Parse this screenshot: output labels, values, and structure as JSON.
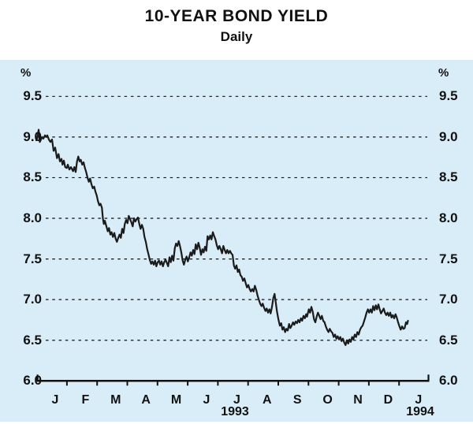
{
  "header": {
    "title": "10-YEAR BOND YIELD",
    "subtitle": "Daily"
  },
  "axis": {
    "unit_left": "%",
    "unit_right": "%",
    "year_left": "1993",
    "year_right": "1994"
  },
  "chart_data": {
    "type": "line",
    "title": "10-YEAR BOND YIELD",
    "subtitle": "Daily",
    "ylabel": "%",
    "ylim": [
      6.0,
      9.5
    ],
    "yticks": [
      9.5,
      9.0,
      8.5,
      8.0,
      7.5,
      7.0,
      6.5,
      6.0
    ],
    "ytick_labels": [
      "9.5",
      "9.0",
      "8.5",
      "8.0",
      "7.5",
      "7.0",
      "6.5",
      "6.0"
    ],
    "x_months": [
      "J",
      "F",
      "M",
      "A",
      "M",
      "J",
      "J",
      "A",
      "S",
      "O",
      "N",
      "D",
      "J"
    ],
    "x_years": [
      "1993",
      "1994"
    ],
    "grid": "horizontal dashed lines at each 0.5 from 6.5 to 9.5; solid x-axis at 6.0 with month ticks",
    "legend_position": "none",
    "colors": {
      "background": "#d9edf8",
      "line": "#1b1b1b",
      "text": "#111111"
    },
    "series": [
      {
        "name": "10-year bond yield, daily, per cent",
        "points": [
          [
            46,
            8.96
          ],
          [
            47.5,
            8.99
          ],
          [
            49,
            9.09
          ],
          [
            50.5,
            8.94
          ],
          [
            52,
            8.97
          ],
          [
            53.5,
            9.0
          ],
          [
            55,
            8.98
          ],
          [
            57,
            9.02
          ],
          [
            58.5,
            9.0
          ],
          [
            60,
            9.02
          ],
          [
            62,
            8.97
          ],
          [
            64,
            8.94
          ],
          [
            66,
            8.97
          ],
          [
            68,
            8.83
          ],
          [
            70,
            8.87
          ],
          [
            72.3,
            8.74
          ],
          [
            74.3,
            8.79
          ],
          [
            76,
            8.7
          ],
          [
            78,
            8.73
          ],
          [
            79.3,
            8.66
          ],
          [
            81,
            8.71
          ],
          [
            82.7,
            8.63
          ],
          [
            84.7,
            8.62
          ],
          [
            86,
            8.66
          ],
          [
            88,
            8.6
          ],
          [
            90,
            8.63
          ],
          [
            92.7,
            8.58
          ],
          [
            94.3,
            8.63
          ],
          [
            96,
            8.57
          ],
          [
            97.7,
            8.7
          ],
          [
            99.3,
            8.76
          ],
          [
            101,
            8.7
          ],
          [
            102.5,
            8.72
          ],
          [
            104.3,
            8.66
          ],
          [
            106,
            8.69
          ],
          [
            107.7,
            8.62
          ],
          [
            109.3,
            8.57
          ],
          [
            111,
            8.5
          ],
          [
            112.7,
            8.45
          ],
          [
            114.3,
            8.49
          ],
          [
            116,
            8.42
          ],
          [
            117.7,
            8.37
          ],
          [
            119.5,
            8.39
          ],
          [
            121,
            8.33
          ],
          [
            122.7,
            8.28
          ],
          [
            124.3,
            8.21
          ],
          [
            126,
            8.16
          ],
          [
            127.5,
            8.18
          ],
          [
            129.3,
            8.13
          ],
          [
            130.5,
            8.0
          ],
          [
            131.7,
            7.93
          ],
          [
            133,
            7.97
          ],
          [
            135,
            7.9
          ],
          [
            136.7,
            7.84
          ],
          [
            138.3,
            7.88
          ],
          [
            140,
            7.8
          ],
          [
            141.5,
            7.83
          ],
          [
            143.3,
            7.77
          ],
          [
            145,
            7.82
          ],
          [
            146.7,
            7.75
          ],
          [
            148.3,
            7.71
          ],
          [
            150,
            7.76
          ],
          [
            151.7,
            7.8
          ],
          [
            153.3,
            7.76
          ],
          [
            155,
            7.87
          ],
          [
            156.7,
            7.82
          ],
          [
            158.3,
            7.93
          ],
          [
            160,
            7.98
          ],
          [
            161.7,
            7.94
          ],
          [
            163.3,
            8.03
          ],
          [
            165,
            7.99
          ],
          [
            166.7,
            7.95
          ],
          [
            168.3,
            7.9
          ],
          [
            170,
            8.0
          ],
          [
            171.7,
            7.96
          ],
          [
            173.3,
            7.99
          ],
          [
            175,
            8.01
          ],
          [
            176.7,
            7.93
          ],
          [
            178.3,
            7.87
          ],
          [
            180,
            7.92
          ],
          [
            181.7,
            7.87
          ],
          [
            183.3,
            7.77
          ],
          [
            185,
            7.71
          ],
          [
            186.7,
            7.62
          ],
          [
            188.3,
            7.56
          ],
          [
            190,
            7.49
          ],
          [
            191.7,
            7.44
          ],
          [
            193.3,
            7.47
          ],
          [
            195,
            7.43
          ],
          [
            196.7,
            7.48
          ],
          [
            198.3,
            7.41
          ],
          [
            200,
            7.46
          ],
          [
            201.7,
            7.48
          ],
          [
            203.3,
            7.43
          ],
          [
            205,
            7.47
          ],
          [
            206.7,
            7.41
          ],
          [
            208.3,
            7.46
          ],
          [
            210,
            7.49
          ],
          [
            211.7,
            7.45
          ],
          [
            213.3,
            7.41
          ],
          [
            215,
            7.52
          ],
          [
            216.7,
            7.46
          ],
          [
            218.3,
            7.54
          ],
          [
            220,
            7.48
          ],
          [
            221.7,
            7.63
          ],
          [
            223.3,
            7.69
          ],
          [
            225,
            7.66
          ],
          [
            226.7,
            7.72
          ],
          [
            228.3,
            7.66
          ],
          [
            230,
            7.58
          ],
          [
            231.7,
            7.48
          ],
          [
            233.3,
            7.43
          ],
          [
            235,
            7.49
          ],
          [
            236.7,
            7.53
          ],
          [
            238.3,
            7.47
          ],
          [
            240,
            7.52
          ],
          [
            241.7,
            7.58
          ],
          [
            243.3,
            7.54
          ],
          [
            245,
            7.61
          ],
          [
            246.7,
            7.56
          ],
          [
            248.3,
            7.68
          ],
          [
            250,
            7.62
          ],
          [
            251.7,
            7.7
          ],
          [
            253.3,
            7.64
          ],
          [
            255,
            7.55
          ],
          [
            256.7,
            7.62
          ],
          [
            258.3,
            7.58
          ],
          [
            260,
            7.65
          ],
          [
            261.7,
            7.6
          ],
          [
            263.3,
            7.78
          ],
          [
            265,
            7.74
          ],
          [
            266.7,
            7.79
          ],
          [
            268.3,
            7.74
          ],
          [
            270,
            7.83
          ],
          [
            271.7,
            7.78
          ],
          [
            273.3,
            7.74
          ],
          [
            275,
            7.67
          ],
          [
            276.7,
            7.62
          ],
          [
            278.3,
            7.66
          ],
          [
            280,
            7.62
          ],
          [
            281.7,
            7.57
          ],
          [
            283.3,
            7.66
          ],
          [
            285,
            7.61
          ],
          [
            286.7,
            7.57
          ],
          [
            288.3,
            7.61
          ],
          [
            290,
            7.57
          ],
          [
            291.7,
            7.6
          ],
          [
            293.3,
            7.57
          ],
          [
            295,
            7.55
          ],
          [
            296.7,
            7.42
          ],
          [
            298.3,
            7.38
          ],
          [
            300,
            7.42
          ],
          [
            301.7,
            7.34
          ],
          [
            303.3,
            7.37
          ],
          [
            305,
            7.3
          ],
          [
            306.7,
            7.28
          ],
          [
            308.3,
            7.23
          ],
          [
            310,
            7.26
          ],
          [
            311.7,
            7.2
          ],
          [
            313.3,
            7.15
          ],
          [
            315,
            7.18
          ],
          [
            316.7,
            7.13
          ],
          [
            318.3,
            7.1
          ],
          [
            320,
            7.13
          ],
          [
            321.7,
            7.1
          ],
          [
            323.3,
            7.17
          ],
          [
            325,
            7.12
          ],
          [
            326.7,
            7.05
          ],
          [
            328.3,
            7.0
          ],
          [
            330,
            6.95
          ],
          [
            331.7,
            6.92
          ],
          [
            333.3,
            6.95
          ],
          [
            335,
            6.9
          ],
          [
            336.7,
            6.86
          ],
          [
            338.3,
            6.89
          ],
          [
            340,
            6.84
          ],
          [
            341.7,
            6.88
          ],
          [
            343.3,
            6.83
          ],
          [
            345,
            6.91
          ],
          [
            346.7,
            7.02
          ],
          [
            348.3,
            7.07
          ],
          [
            350,
            6.95
          ],
          [
            351.4,
            6.85
          ],
          [
            353.3,
            6.75
          ],
          [
            355,
            6.68
          ],
          [
            356.7,
            6.71
          ],
          [
            358.3,
            6.63
          ],
          [
            360,
            6.66
          ],
          [
            361.7,
            6.6
          ],
          [
            363.3,
            6.64
          ],
          [
            365,
            6.62
          ],
          [
            366.7,
            6.7
          ],
          [
            368.3,
            6.65
          ],
          [
            370,
            6.68
          ],
          [
            371.7,
            6.72
          ],
          [
            373.3,
            6.69
          ],
          [
            375,
            6.73
          ],
          [
            376.7,
            6.71
          ],
          [
            378.3,
            6.75
          ],
          [
            380,
            6.72
          ],
          [
            381.7,
            6.77
          ],
          [
            383.3,
            6.74
          ],
          [
            385,
            6.8
          ],
          [
            386.7,
            6.77
          ],
          [
            388.3,
            6.82
          ],
          [
            389.5,
            6.79
          ],
          [
            391.7,
            6.88
          ],
          [
            393.3,
            6.84
          ],
          [
            395,
            6.91
          ],
          [
            396.7,
            6.85
          ],
          [
            398.3,
            6.76
          ],
          [
            400,
            6.72
          ],
          [
            401.7,
            6.79
          ],
          [
            403.3,
            6.84
          ],
          [
            405,
            6.8
          ],
          [
            406.7,
            6.76
          ],
          [
            408.3,
            6.8
          ],
          [
            410,
            6.74
          ],
          [
            411.7,
            6.72
          ],
          [
            413.3,
            6.67
          ],
          [
            415,
            6.63
          ],
          [
            416.7,
            6.6
          ],
          [
            418.3,
            6.64
          ],
          [
            420,
            6.61
          ],
          [
            421.7,
            6.59
          ],
          [
            423.3,
            6.54
          ],
          [
            425,
            6.57
          ],
          [
            426.7,
            6.52
          ],
          [
            428.3,
            6.55
          ],
          [
            430,
            6.51
          ],
          [
            431.7,
            6.54
          ],
          [
            433.3,
            6.49
          ],
          [
            435,
            6.52
          ],
          [
            436.7,
            6.47
          ],
          [
            438.3,
            6.44
          ],
          [
            440,
            6.5
          ],
          [
            441.7,
            6.46
          ],
          [
            443.3,
            6.51
          ],
          [
            445,
            6.48
          ],
          [
            446.7,
            6.54
          ],
          [
            448.3,
            6.51
          ],
          [
            450,
            6.57
          ],
          [
            451.7,
            6.54
          ],
          [
            453.3,
            6.6
          ],
          [
            455,
            6.57
          ],
          [
            456.7,
            6.63
          ],
          [
            458.3,
            6.66
          ],
          [
            460,
            6.68
          ],
          [
            461.7,
            6.73
          ],
          [
            463.3,
            6.78
          ],
          [
            465,
            6.84
          ],
          [
            466.7,
            6.88
          ],
          [
            468.3,
            6.84
          ],
          [
            470,
            6.88
          ],
          [
            471.7,
            6.84
          ],
          [
            473.3,
            6.92
          ],
          [
            475,
            6.87
          ],
          [
            476.7,
            6.93
          ],
          [
            478.3,
            6.88
          ],
          [
            480,
            6.94
          ],
          [
            481.7,
            6.88
          ],
          [
            483.3,
            6.83
          ],
          [
            485,
            6.86
          ],
          [
            486.7,
            6.89
          ],
          [
            488.3,
            6.84
          ],
          [
            490,
            6.81
          ],
          [
            491.7,
            6.84
          ],
          [
            493.3,
            6.8
          ],
          [
            495,
            6.84
          ],
          [
            496.7,
            6.78
          ],
          [
            498.3,
            6.81
          ],
          [
            500,
            6.77
          ],
          [
            501.7,
            6.82
          ],
          [
            503.3,
            6.78
          ],
          [
            505,
            6.72
          ],
          [
            506.7,
            6.67
          ],
          [
            508.3,
            6.63
          ],
          [
            510,
            6.67
          ],
          [
            511.7,
            6.64
          ],
          [
            513.3,
            6.65
          ],
          [
            515,
            6.72
          ],
          [
            516.5,
            6.7
          ],
          [
            517.5,
            6.74
          ]
        ]
      }
    ]
  }
}
